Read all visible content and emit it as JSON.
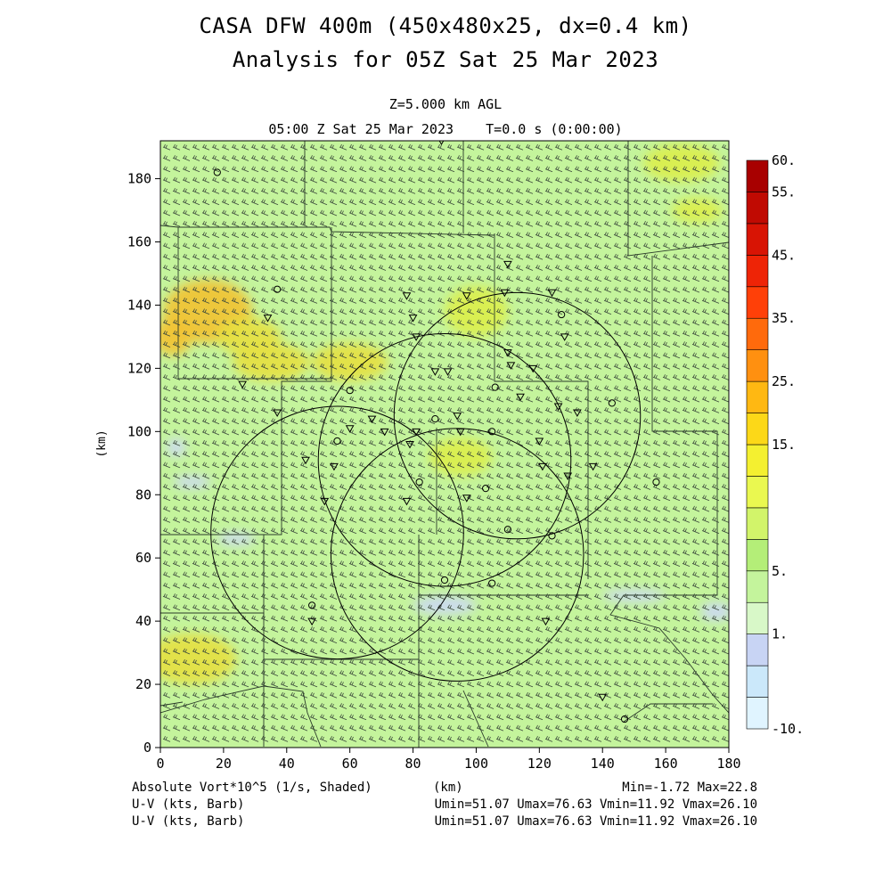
{
  "header": {
    "title_line1": "CASA DFW 400m (450x480x25, dx=0.4 km)",
    "title_line2": "Analysis for 05Z Sat 25 Mar 2023",
    "level": "Z=5.000 km AGL",
    "time_info": "05:00 Z Sat 25 Mar 2023    T=0.0 s (0:00:00)"
  },
  "footer": {
    "field_label": "Absolute Vort*10^5 (1/s, Shaded)",
    "x_unit": "(km)",
    "min_max": "Min=-1.72 Max=22.8",
    "vector1_label": "U-V (kts, Barb)",
    "vector1_stats": "Umin=51.07 Umax=76.63 Vmin=11.92 Vmax=26.10",
    "vector2_label": "U-V (kts, Barb)",
    "vector2_stats": "Umin=51.07 Umax=76.63 Vmin=11.92 Vmax=26.10"
  },
  "chart_data": {
    "type": "heatmap",
    "field": "Absolute Vort*10^5 (1/s, Shaded)",
    "ylabel": "(km)",
    "xlabel": "(km)",
    "xlim": [
      0,
      180
    ],
    "ylim": [
      0,
      192
    ],
    "xticks": [
      "0",
      "20",
      "40",
      "60",
      "80",
      "100",
      "120",
      "140",
      "160",
      "180"
    ],
    "yticks": [
      "0",
      "20",
      "40",
      "60",
      "80",
      "100",
      "120",
      "140",
      "160",
      "180"
    ],
    "field_min": -1.72,
    "field_max": 22.8,
    "colorbar": {
      "levels": [
        "-10.",
        "1.",
        "5.",
        "15.",
        "25.",
        "35.",
        "45.",
        "55.",
        "60."
      ],
      "colors": [
        "#e0f4ff",
        "#cbe8fa",
        "#c8d4f4",
        "#d8f8c8",
        "#c4f49c",
        "#b4ee78",
        "#d2f46a",
        "#eaf850",
        "#f4f030",
        "#fcd818",
        "#ffb812",
        "#ff9010",
        "#ff6a0c",
        "#ff4008",
        "#ee2406",
        "#d81404",
        "#c00a02",
        "#a80000"
      ]
    },
    "radars": [
      {
        "cx": 113,
        "cy": 105,
        "r": 39
      },
      {
        "cx": 90,
        "cy": 91,
        "r": 40
      },
      {
        "cx": 56,
        "cy": 68,
        "r": 40
      },
      {
        "cx": 94,
        "cy": 61,
        "r": 40
      }
    ],
    "vorticity_patches": [
      {
        "x": 4,
        "y": 130,
        "rx": 6,
        "ry": 6,
        "v": 18
      },
      {
        "x": 15,
        "y": 138,
        "rx": 14,
        "ry": 10,
        "v": 16
      },
      {
        "x": 28,
        "y": 130,
        "rx": 10,
        "ry": 6,
        "v": 15
      },
      {
        "x": 35,
        "y": 122,
        "rx": 12,
        "ry": 6,
        "v": 14
      },
      {
        "x": 60,
        "y": 122,
        "rx": 12,
        "ry": 6,
        "v": 14
      },
      {
        "x": 10,
        "y": 28,
        "rx": 14,
        "ry": 8,
        "v": 15
      },
      {
        "x": 165,
        "y": 185,
        "rx": 12,
        "ry": 6,
        "v": 13
      },
      {
        "x": 170,
        "y": 170,
        "rx": 8,
        "ry": 4,
        "v": 13
      },
      {
        "x": 100,
        "y": 138,
        "rx": 10,
        "ry": 8,
        "v": 12
      },
      {
        "x": 95,
        "y": 92,
        "rx": 10,
        "ry": 6,
        "v": 12
      },
      {
        "x": 5,
        "y": 95,
        "rx": 3,
        "ry": 3,
        "v": 3
      },
      {
        "x": 10,
        "y": 84,
        "rx": 6,
        "ry": 2,
        "v": 3
      },
      {
        "x": 24,
        "y": 66,
        "rx": 6,
        "ry": 2,
        "v": 3
      },
      {
        "x": 90,
        "y": 45,
        "rx": 10,
        "ry": 3,
        "v": 3
      },
      {
        "x": 150,
        "y": 48,
        "rx": 10,
        "ry": 2,
        "v": 3
      },
      {
        "x": 176,
        "y": 43,
        "rx": 5,
        "ry": 3,
        "v": 3
      }
    ],
    "markers_triangle": [
      [
        34,
        136
      ],
      [
        26,
        115
      ],
      [
        37,
        106
      ],
      [
        55,
        89
      ],
      [
        52,
        78
      ],
      [
        67,
        104
      ],
      [
        71,
        100
      ],
      [
        81,
        100
      ],
      [
        78,
        78
      ],
      [
        79,
        96
      ],
      [
        87,
        119
      ],
      [
        91,
        119
      ],
      [
        94,
        105
      ],
      [
        95,
        100
      ],
      [
        97,
        79
      ],
      [
        78,
        143
      ],
      [
        80,
        136
      ],
      [
        81,
        130
      ],
      [
        97,
        143
      ],
      [
        110,
        153
      ],
      [
        109,
        144
      ],
      [
        110,
        125
      ],
      [
        111,
        121
      ],
      [
        118,
        120
      ],
      [
        114,
        111
      ],
      [
        120,
        97
      ],
      [
        121,
        89
      ],
      [
        122,
        40
      ],
      [
        124,
        144
      ],
      [
        126,
        108
      ],
      [
        128,
        130
      ],
      [
        129,
        86
      ],
      [
        132,
        106
      ],
      [
        137,
        89
      ],
      [
        140,
        16
      ],
      [
        60,
        101
      ],
      [
        46,
        91
      ],
      [
        48,
        40
      ],
      [
        89,
        192
      ]
    ],
    "markers_circle": [
      [
        18,
        182
      ],
      [
        37,
        145
      ],
      [
        60,
        113
      ],
      [
        56,
        97
      ],
      [
        82,
        84
      ],
      [
        87,
        104
      ],
      [
        105,
        100
      ],
      [
        106,
        114
      ],
      [
        103,
        82
      ],
      [
        110,
        69
      ],
      [
        127,
        137
      ],
      [
        143,
        109
      ],
      [
        157,
        84
      ],
      [
        105,
        52
      ],
      [
        48,
        45
      ],
      [
        147,
        9
      ],
      [
        124,
        67
      ],
      [
        90,
        53
      ]
    ]
  }
}
